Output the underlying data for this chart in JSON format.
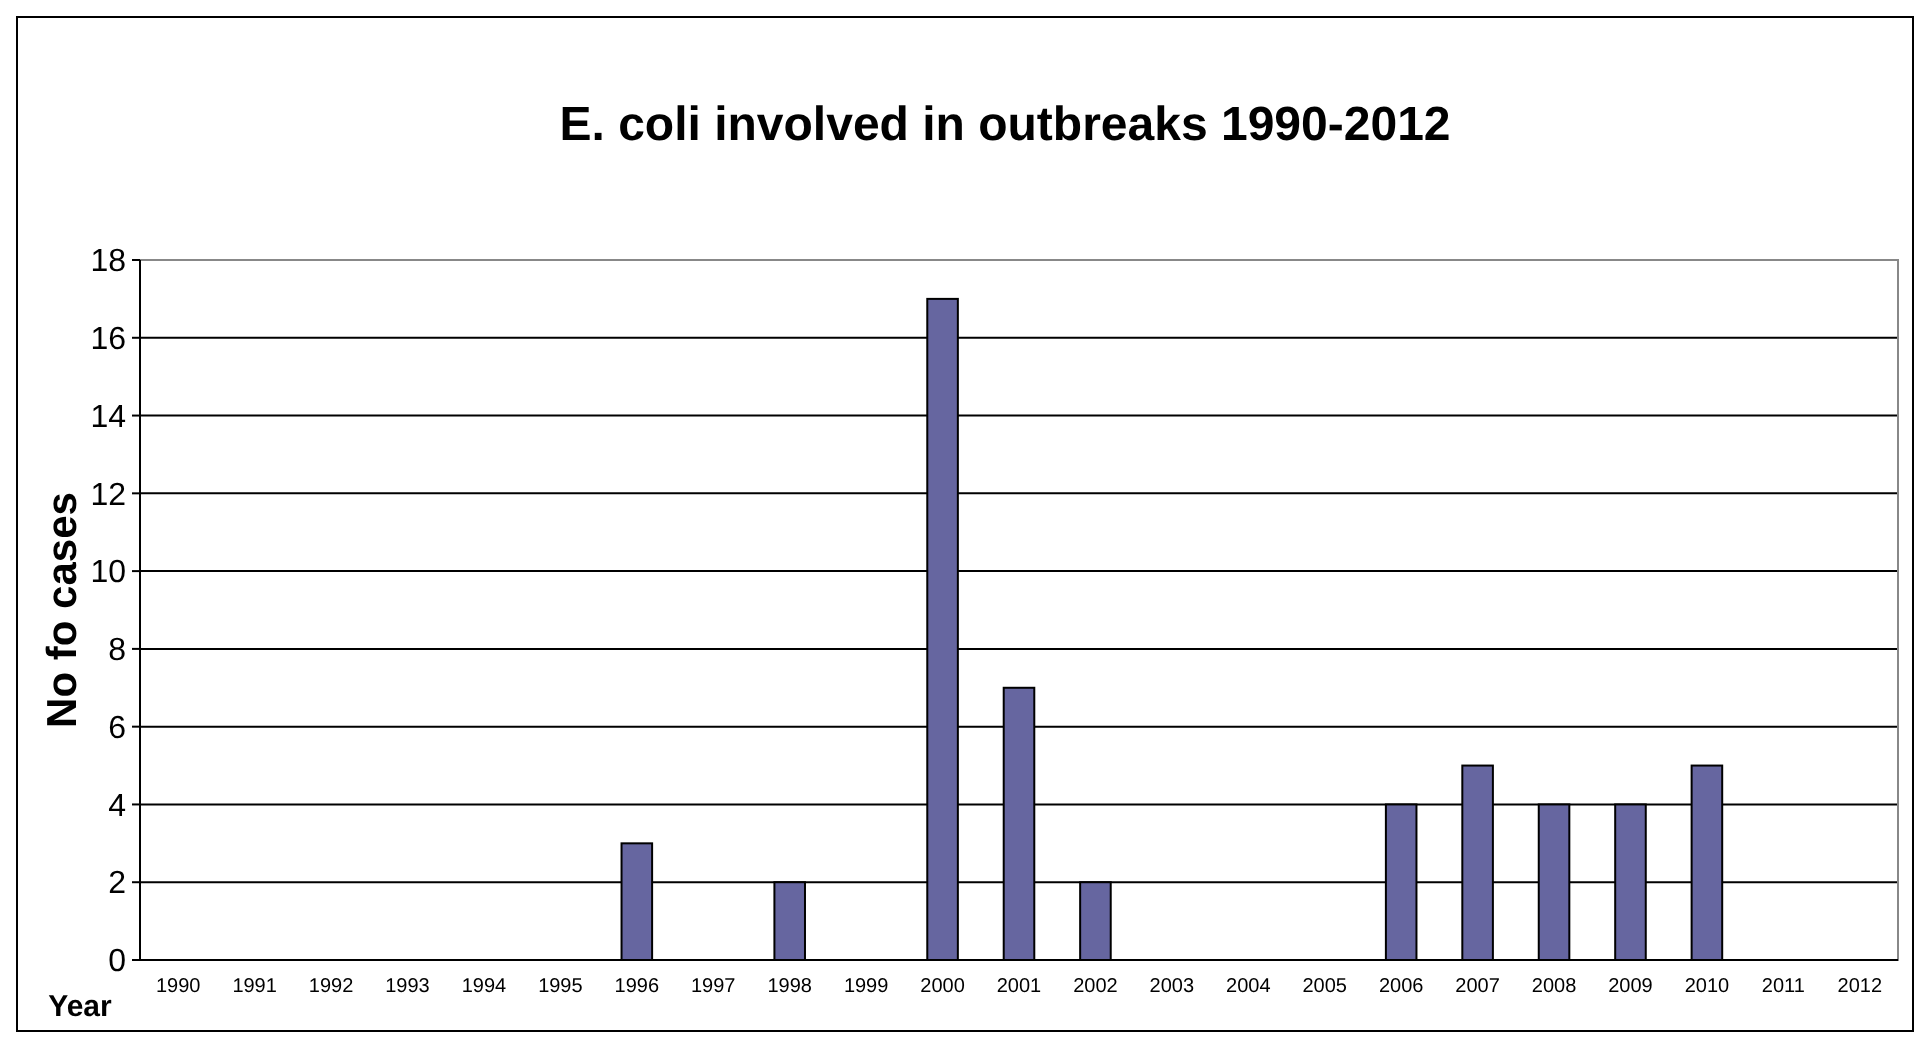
{
  "chart_data": {
    "type": "bar",
    "title": "E. coli involved in outbreaks 1990-2012",
    "xlabel": "Year",
    "ylabel": "No fo cases",
    "categories": [
      "1990",
      "1991",
      "1992",
      "1993",
      "1994",
      "1995",
      "1996",
      "1997",
      "1998",
      "1999",
      "2000",
      "2001",
      "2002",
      "2003",
      "2004",
      "2005",
      "2006",
      "2007",
      "2008",
      "2009",
      "2010",
      "2011",
      "2012"
    ],
    "values": [
      0,
      0,
      0,
      0,
      0,
      0,
      3,
      0,
      2,
      0,
      17,
      7,
      2,
      0,
      0,
      0,
      4,
      5,
      4,
      4,
      5,
      0,
      0
    ],
    "color": "#6666a0",
    "ylim": [
      0,
      18
    ],
    "yticks": [
      0,
      2,
      4,
      6,
      8,
      10,
      12,
      14,
      16,
      18
    ],
    "grid": "y"
  }
}
